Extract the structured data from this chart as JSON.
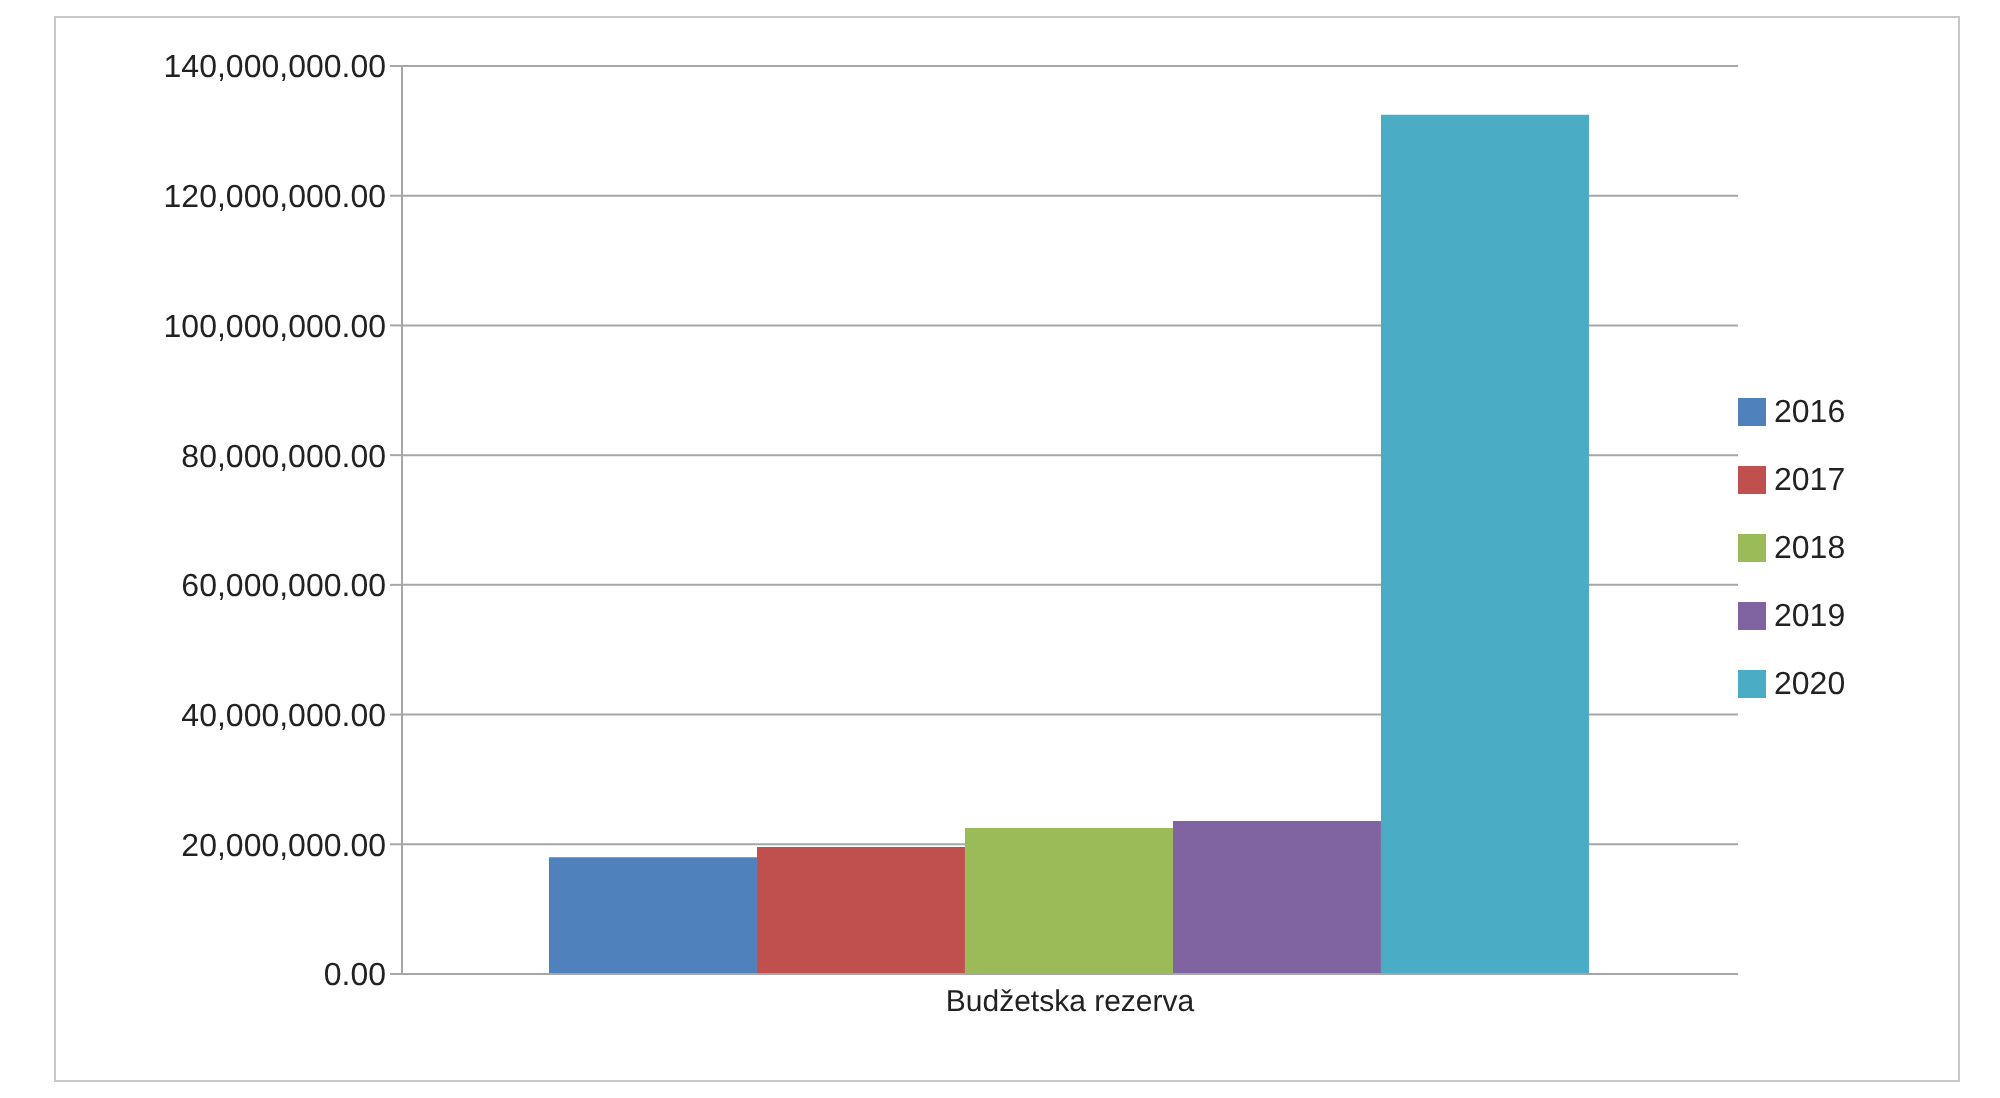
{
  "chart_data": {
    "type": "bar",
    "categories": [
      "Budžetska rezerva"
    ],
    "series": [
      {
        "name": "2016",
        "color": "#4f81bd",
        "values": [
          18000000
        ]
      },
      {
        "name": "2017",
        "color": "#c0504d",
        "values": [
          19600000
        ]
      },
      {
        "name": "2018",
        "color": "#9bbb59",
        "values": [
          22500000
        ]
      },
      {
        "name": "2019",
        "color": "#8064a2",
        "values": [
          23600000
        ]
      },
      {
        "name": "2020",
        "color": "#4bacc6",
        "values": [
          132500000
        ]
      }
    ],
    "ylim": [
      0,
      140000000
    ],
    "yticks": [
      {
        "value": 0,
        "label": "0.00"
      },
      {
        "value": 20000000,
        "label": "20,000,000.00"
      },
      {
        "value": 40000000,
        "label": "40,000,000.00"
      },
      {
        "value": 60000000,
        "label": "60,000,000.00"
      },
      {
        "value": 80000000,
        "label": "80,000,000.00"
      },
      {
        "value": 100000000,
        "label": "100,000,000.00"
      },
      {
        "value": 120000000,
        "label": "120,000,000.00"
      },
      {
        "value": 140000000,
        "label": "140,000,000.00"
      }
    ],
    "grid": "y",
    "legend": "right"
  }
}
